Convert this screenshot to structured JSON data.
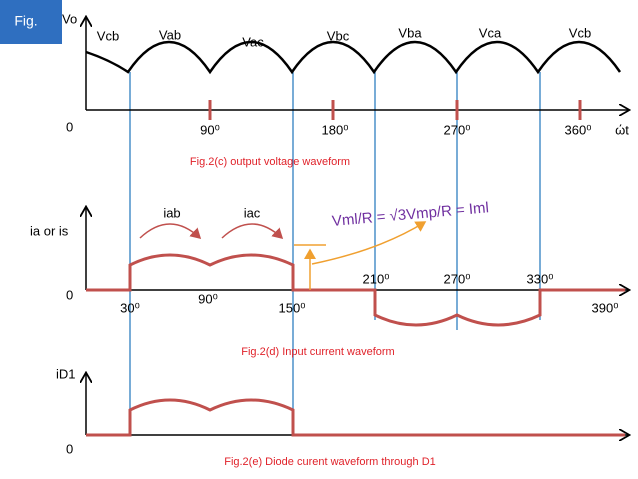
{
  "badge": "Fig.",
  "plot_c": {
    "y_label": "Vo",
    "origin": "0",
    "wave_labels": [
      "Vcb",
      "Vab",
      "Vac",
      "Vbc",
      "Vba",
      "Vca",
      "Vcb"
    ],
    "angle_labels": [
      "90⁰",
      "180⁰",
      "270⁰",
      "360⁰"
    ],
    "x_label": "ώt",
    "caption": "Fig.2(c) output voltage waveform"
  },
  "plot_d": {
    "y_label": "ia or is",
    "origin": "0",
    "current_labels": [
      "iab",
      "iac"
    ],
    "equation": "Vml/R = √3Vmp/R = Iml",
    "angle_labels": [
      "30⁰",
      "90⁰",
      "150⁰",
      "210⁰",
      "270⁰",
      "330⁰",
      "390⁰"
    ],
    "caption": "Fig.2(d) Input current waveform"
  },
  "plot_e": {
    "y_label": "iD1",
    "origin": "0",
    "caption": "Fig.2(e) Diode curent waveform through D1"
  }
}
